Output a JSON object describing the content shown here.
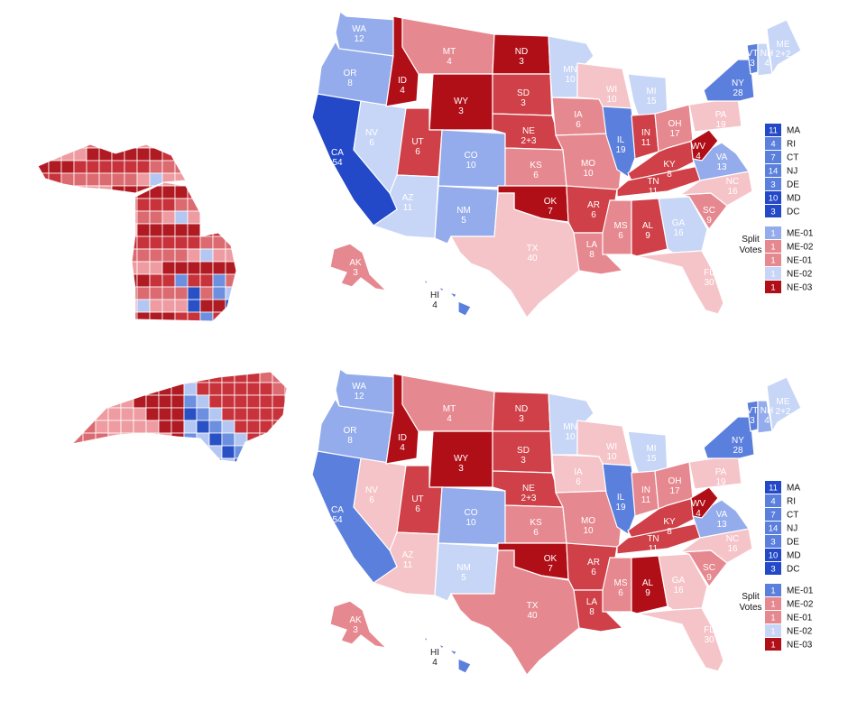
{
  "colors": {
    "D3": "#2349c8",
    "D2": "#5b7fdc",
    "D1": "#94acec",
    "D0": "#c7d5f6",
    "R0": "#f5c4c9",
    "R1": "#e6888f",
    "R2": "#cf4048",
    "R3": "#b10f17",
    "county_red": [
      "#b01a22",
      "#c8333b",
      "#dc6b71",
      "#ee9ca1"
    ],
    "county_blue": [
      "#2a50c6",
      "#6c8fe0",
      "#b4c6f2"
    ]
  },
  "maps": [
    {
      "id": "top",
      "inset_map": "michigan-counties",
      "states": [
        {
          "abbr": "WA",
          "ev": "12",
          "c": "D1"
        },
        {
          "abbr": "OR",
          "ev": "8",
          "c": "D1"
        },
        {
          "abbr": "CA",
          "ev": "54",
          "c": "D3"
        },
        {
          "abbr": "NV",
          "ev": "6",
          "c": "D0"
        },
        {
          "abbr": "ID",
          "ev": "4",
          "c": "R3"
        },
        {
          "abbr": "MT",
          "ev": "4",
          "c": "R1"
        },
        {
          "abbr": "WY",
          "ev": "3",
          "c": "R3"
        },
        {
          "abbr": "UT",
          "ev": "6",
          "c": "R2"
        },
        {
          "abbr": "AZ",
          "ev": "11",
          "c": "D0"
        },
        {
          "abbr": "CO",
          "ev": "10",
          "c": "D1"
        },
        {
          "abbr": "NM",
          "ev": "5",
          "c": "D1"
        },
        {
          "abbr": "ND",
          "ev": "3",
          "c": "R3"
        },
        {
          "abbr": "SD",
          "ev": "3",
          "c": "R2"
        },
        {
          "abbr": "NE",
          "ev": "2+3",
          "c": "R2"
        },
        {
          "abbr": "KS",
          "ev": "6",
          "c": "R1"
        },
        {
          "abbr": "OK",
          "ev": "7",
          "c": "R3"
        },
        {
          "abbr": "TX",
          "ev": "40",
          "c": "R0"
        },
        {
          "abbr": "MN",
          "ev": "10",
          "c": "D0"
        },
        {
          "abbr": "IA",
          "ev": "6",
          "c": "R1"
        },
        {
          "abbr": "MO",
          "ev": "10",
          "c": "R1"
        },
        {
          "abbr": "AR",
          "ev": "6",
          "c": "R2"
        },
        {
          "abbr": "LA",
          "ev": "8",
          "c": "R1"
        },
        {
          "abbr": "WI",
          "ev": "10",
          "c": "R0"
        },
        {
          "abbr": "IL",
          "ev": "19",
          "c": "D2"
        },
        {
          "abbr": "MI",
          "ev": "15",
          "c": "D0"
        },
        {
          "abbr": "IN",
          "ev": "11",
          "c": "R2"
        },
        {
          "abbr": "OH",
          "ev": "17",
          "c": "R1"
        },
        {
          "abbr": "KY",
          "ev": "8",
          "c": "R2"
        },
        {
          "abbr": "TN",
          "ev": "11",
          "c": "R2"
        },
        {
          "abbr": "MS",
          "ev": "6",
          "c": "R1"
        },
        {
          "abbr": "AL",
          "ev": "9",
          "c": "R2"
        },
        {
          "abbr": "GA",
          "ev": "16",
          "c": "D0"
        },
        {
          "abbr": "FL",
          "ev": "30",
          "c": "R0"
        },
        {
          "abbr": "SC",
          "ev": "9",
          "c": "R1"
        },
        {
          "abbr": "NC",
          "ev": "16",
          "c": "R0"
        },
        {
          "abbr": "VA",
          "ev": "13",
          "c": "D1"
        },
        {
          "abbr": "WV",
          "ev": "4",
          "c": "R3"
        },
        {
          "abbr": "PA",
          "ev": "19",
          "c": "R0"
        },
        {
          "abbr": "NY",
          "ev": "28",
          "c": "D2"
        },
        {
          "abbr": "VT",
          "ev": "3",
          "c": "D2"
        },
        {
          "abbr": "NH",
          "ev": "4",
          "c": "D0"
        },
        {
          "abbr": "ME",
          "ev": "2+2",
          "c": "D0"
        },
        {
          "abbr": "AK",
          "ev": "3",
          "c": "R1"
        },
        {
          "abbr": "HI",
          "ev": "4",
          "c": "D2"
        }
      ],
      "northeast_legend": [
        {
          "ev": "11",
          "label": "MA",
          "c": "D3"
        },
        {
          "ev": "4",
          "label": "RI",
          "c": "D2"
        },
        {
          "ev": "7",
          "label": "CT",
          "c": "D2"
        },
        {
          "ev": "14",
          "label": "NJ",
          "c": "D2"
        },
        {
          "ev": "3",
          "label": "DE",
          "c": "D2"
        },
        {
          "ev": "10",
          "label": "MD",
          "c": "D3"
        },
        {
          "ev": "3",
          "label": "DC",
          "c": "D3"
        }
      ],
      "split_votes": [
        {
          "ev": "1",
          "label": "ME-01",
          "c": "D1"
        },
        {
          "ev": "1",
          "label": "ME-02",
          "c": "R1"
        },
        {
          "ev": "1",
          "label": "NE-01",
          "c": "R1"
        },
        {
          "ev": "1",
          "label": "NE-02",
          "c": "D0"
        },
        {
          "ev": "1",
          "label": "NE-03",
          "c": "R3"
        }
      ],
      "split_votes_title": [
        "Split",
        "Votes"
      ]
    },
    {
      "id": "bottom",
      "inset_map": "north-carolina-counties",
      "states": [
        {
          "abbr": "WA",
          "ev": "12",
          "c": "D1"
        },
        {
          "abbr": "OR",
          "ev": "8",
          "c": "D1"
        },
        {
          "abbr": "CA",
          "ev": "54",
          "c": "D2"
        },
        {
          "abbr": "NV",
          "ev": "6",
          "c": "R0"
        },
        {
          "abbr": "ID",
          "ev": "4",
          "c": "R3"
        },
        {
          "abbr": "MT",
          "ev": "4",
          "c": "R1"
        },
        {
          "abbr": "WY",
          "ev": "3",
          "c": "R3"
        },
        {
          "abbr": "UT",
          "ev": "6",
          "c": "R2"
        },
        {
          "abbr": "AZ",
          "ev": "11",
          "c": "R0"
        },
        {
          "abbr": "CO",
          "ev": "10",
          "c": "D1"
        },
        {
          "abbr": "NM",
          "ev": "5",
          "c": "D0"
        },
        {
          "abbr": "ND",
          "ev": "3",
          "c": "R2"
        },
        {
          "abbr": "SD",
          "ev": "3",
          "c": "R2"
        },
        {
          "abbr": "NE",
          "ev": "2+3",
          "c": "R2"
        },
        {
          "abbr": "KS",
          "ev": "6",
          "c": "R1"
        },
        {
          "abbr": "OK",
          "ev": "7",
          "c": "R3"
        },
        {
          "abbr": "TX",
          "ev": "40",
          "c": "R1"
        },
        {
          "abbr": "MN",
          "ev": "10",
          "c": "D0"
        },
        {
          "abbr": "IA",
          "ev": "6",
          "c": "R0"
        },
        {
          "abbr": "MO",
          "ev": "10",
          "c": "R1"
        },
        {
          "abbr": "AR",
          "ev": "6",
          "c": "R2"
        },
        {
          "abbr": "LA",
          "ev": "8",
          "c": "R2"
        },
        {
          "abbr": "WI",
          "ev": "10",
          "c": "R0"
        },
        {
          "abbr": "IL",
          "ev": "19",
          "c": "D2"
        },
        {
          "abbr": "MI",
          "ev": "15",
          "c": "D0"
        },
        {
          "abbr": "IN",
          "ev": "11",
          "c": "R1"
        },
        {
          "abbr": "OH",
          "ev": "17",
          "c": "R1"
        },
        {
          "abbr": "KY",
          "ev": "8",
          "c": "R2"
        },
        {
          "abbr": "TN",
          "ev": "11",
          "c": "R2"
        },
        {
          "abbr": "MS",
          "ev": "6",
          "c": "R1"
        },
        {
          "abbr": "AL",
          "ev": "9",
          "c": "R3"
        },
        {
          "abbr": "GA",
          "ev": "16",
          "c": "R0"
        },
        {
          "abbr": "FL",
          "ev": "30",
          "c": "R0"
        },
        {
          "abbr": "SC",
          "ev": "9",
          "c": "R1"
        },
        {
          "abbr": "NC",
          "ev": "16",
          "c": "R0"
        },
        {
          "abbr": "VA",
          "ev": "13",
          "c": "D1"
        },
        {
          "abbr": "WV",
          "ev": "4",
          "c": "R3"
        },
        {
          "abbr": "PA",
          "ev": "19",
          "c": "R0"
        },
        {
          "abbr": "NY",
          "ev": "28",
          "c": "D2"
        },
        {
          "abbr": "VT",
          "ev": "3",
          "c": "D2"
        },
        {
          "abbr": "NH",
          "ev": "4",
          "c": "D1"
        },
        {
          "abbr": "ME",
          "ev": "2+2",
          "c": "D0"
        },
        {
          "abbr": "AK",
          "ev": "3",
          "c": "R1"
        },
        {
          "abbr": "HI",
          "ev": "4",
          "c": "D2"
        }
      ],
      "northeast_legend": [
        {
          "ev": "11",
          "label": "MA",
          "c": "D3"
        },
        {
          "ev": "4",
          "label": "RI",
          "c": "D2"
        },
        {
          "ev": "7",
          "label": "CT",
          "c": "D2"
        },
        {
          "ev": "14",
          "label": "NJ",
          "c": "D2"
        },
        {
          "ev": "3",
          "label": "DE",
          "c": "D2"
        },
        {
          "ev": "10",
          "label": "MD",
          "c": "D3"
        },
        {
          "ev": "3",
          "label": "DC",
          "c": "D3"
        }
      ],
      "split_votes": [
        {
          "ev": "1",
          "label": "ME-01",
          "c": "D2"
        },
        {
          "ev": "1",
          "label": "ME-02",
          "c": "R1"
        },
        {
          "ev": "1",
          "label": "NE-01",
          "c": "R1"
        },
        {
          "ev": "1",
          "label": "NE-02",
          "c": "D0"
        },
        {
          "ev": "1",
          "label": "NE-03",
          "c": "R3"
        }
      ],
      "split_votes_title": [
        "Split",
        "Votes"
      ]
    }
  ]
}
